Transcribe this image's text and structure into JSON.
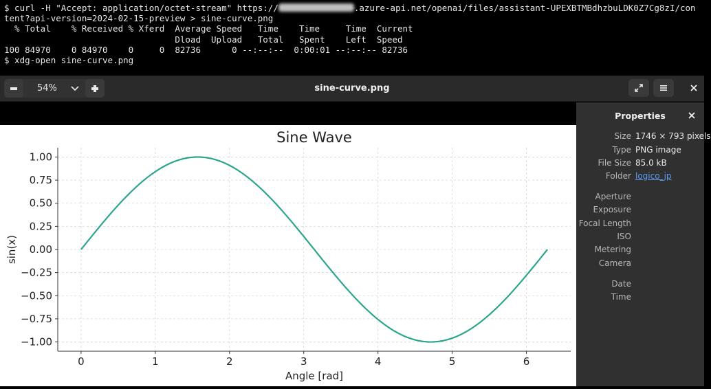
{
  "terminal": {
    "line1_a": "$ curl -H \"Accept: application/octet-stream\" https://",
    "line1_b": ".azure-api.net/openai/files/assistant-UPEXBTMBdhzbuLDK0Z7Cg8zI/con",
    "line2": "tent?api-version=2024-02-15-preview > sine-curve.png",
    "line3": "  % Total    % Received % Xferd  Average Speed   Time    Time     Time  Current",
    "line4": "                                 Dload  Upload   Total   Spent    Left  Speed",
    "line5": "100 84970    0 84970    0     0  82736      0 --:--:--  0:00:01 --:--:-- 82736",
    "line6": "$ xdg-open sine-curve.png"
  },
  "viewer": {
    "zoom": "54%",
    "title": "sine-curve.png"
  },
  "properties": {
    "title": "Properties",
    "rows": [
      {
        "key": "Size",
        "value": "1746 × 793 pixels"
      },
      {
        "key": "Type",
        "value": "PNG image"
      },
      {
        "key": "File Size",
        "value": "85.0 kB"
      },
      {
        "key": "Folder",
        "value": "logico_jp"
      },
      {
        "key": "Aperture",
        "value": ""
      },
      {
        "key": "Exposure",
        "value": ""
      },
      {
        "key": "Focal Length",
        "value": ""
      },
      {
        "key": "ISO",
        "value": ""
      },
      {
        "key": "Metering",
        "value": ""
      },
      {
        "key": "Camera",
        "value": ""
      },
      {
        "key": "Date",
        "value": ""
      },
      {
        "key": "Time",
        "value": ""
      }
    ]
  },
  "chart_data": {
    "type": "line",
    "title": "Sine Wave",
    "xlabel": "Angle [rad]",
    "ylabel": "sin(x)",
    "xlim": [
      -0.314,
      6.597
    ],
    "ylim": [
      -1.1,
      1.1
    ],
    "xticks": [
      0,
      1,
      2,
      3,
      4,
      5,
      6
    ],
    "yticks": [
      1.0,
      0.75,
      0.5,
      0.25,
      0.0,
      -0.25,
      -0.5,
      -0.75,
      -1.0
    ],
    "ytick_labels": [
      "1.00",
      "0.75",
      "0.50",
      "0.25",
      "0.00",
      "−0.25",
      "−0.50",
      "−0.75",
      "−1.00"
    ],
    "grid": true,
    "color": "#2ca58d",
    "series": [
      {
        "function": "sin(x)",
        "x_range": [
          0,
          6.283
        ]
      }
    ]
  }
}
